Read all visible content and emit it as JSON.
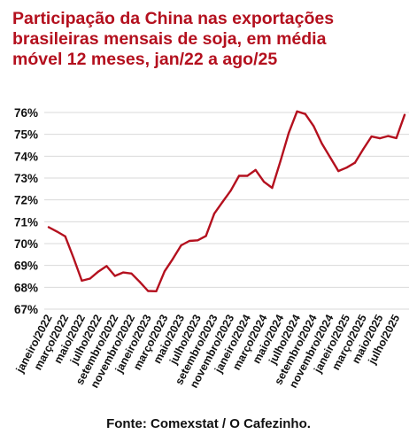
{
  "chart_data": {
    "type": "line",
    "title_lines": [
      "Participação da China nas exportações",
      "brasileiras mensais de soja, em média",
      "móvel 12 meses, jan/22 a ago/25"
    ],
    "source": "Fonte: Comexstat / O Cafezinho.",
    "xlabel": "",
    "ylabel": "",
    "ylim": [
      67,
      76
    ],
    "ytick_values": [
      67,
      68,
      69,
      70,
      71,
      72,
      73,
      74,
      75,
      76
    ],
    "ytick_labels": [
      "67%",
      "68%",
      "69%",
      "70%",
      "71%",
      "72%",
      "73%",
      "74%",
      "75%",
      "76%"
    ],
    "grid": true,
    "x": [
      "jan/22",
      "fev/22",
      "mar/22",
      "abr/22",
      "mai/22",
      "jun/22",
      "jul/22",
      "ago/22",
      "set/22",
      "out/22",
      "nov/22",
      "dez/22",
      "jan/23",
      "fev/23",
      "mar/23",
      "abr/23",
      "mai/23",
      "jun/23",
      "jul/23",
      "ago/23",
      "set/23",
      "out/23",
      "nov/23",
      "dez/23",
      "jan/24",
      "fev/24",
      "mar/24",
      "abr/24",
      "mai/24",
      "jun/24",
      "jul/24",
      "ago/24",
      "set/24",
      "out/24",
      "nov/24",
      "dez/24",
      "jan/25",
      "fev/25",
      "mar/25",
      "abr/25",
      "mai/25",
      "jun/25",
      "jul/25",
      "ago/25"
    ],
    "xtick_labels": [
      {
        "index": 0,
        "label": "janeiro/2022"
      },
      {
        "index": 2,
        "label": "março/2022"
      },
      {
        "index": 4,
        "label": "maio/2022"
      },
      {
        "index": 6,
        "label": "julho/2022"
      },
      {
        "index": 8,
        "label": "setembro/2022"
      },
      {
        "index": 10,
        "label": "novembro/2022"
      },
      {
        "index": 12,
        "label": "janeiro/2023"
      },
      {
        "index": 14,
        "label": "março/2023"
      },
      {
        "index": 16,
        "label": "maio/2023"
      },
      {
        "index": 18,
        "label": "julho/2023"
      },
      {
        "index": 20,
        "label": "setembro/2023"
      },
      {
        "index": 22,
        "label": "novembro/2023"
      },
      {
        "index": 24,
        "label": "janeiro/2024"
      },
      {
        "index": 26,
        "label": "março/2024"
      },
      {
        "index": 28,
        "label": "maio/2024"
      },
      {
        "index": 30,
        "label": "julho/2024"
      },
      {
        "index": 32,
        "label": "setembro/2024"
      },
      {
        "index": 34,
        "label": "novembro/2024"
      },
      {
        "index": 36,
        "label": "janeiro/2025"
      },
      {
        "index": 38,
        "label": "março/2025"
      },
      {
        "index": 40,
        "label": "maio/2025"
      },
      {
        "index": 42,
        "label": "julho/2025"
      }
    ],
    "series": [
      {
        "color": "#b4101e",
        "values": [
          70.75,
          70.55,
          70.33,
          69.35,
          68.3,
          68.4,
          68.72,
          68.97,
          68.52,
          68.68,
          68.63,
          68.25,
          67.83,
          67.82,
          68.73,
          69.3,
          69.92,
          70.12,
          70.15,
          70.35,
          71.37,
          71.9,
          72.43,
          73.1,
          73.1,
          73.37,
          72.83,
          72.55,
          73.78,
          75.06,
          76.05,
          75.93,
          75.38,
          74.58,
          73.95,
          73.32,
          73.48,
          73.7,
          74.32,
          74.9,
          74.82,
          74.92,
          74.83,
          75.89
        ]
      }
    ]
  }
}
